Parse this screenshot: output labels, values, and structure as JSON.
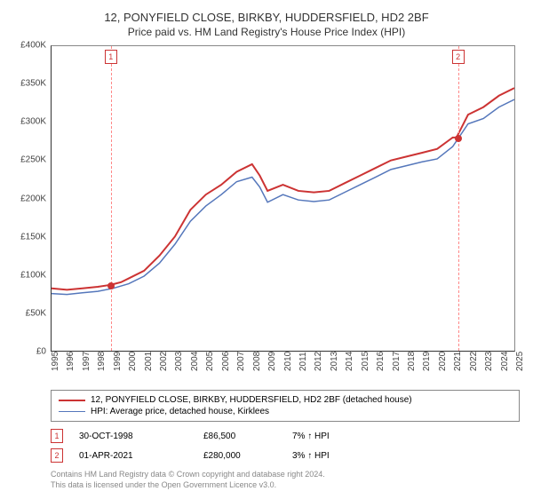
{
  "header": {
    "title": "12, PONYFIELD CLOSE, BIRKBY, HUDDERSFIELD, HD2 2BF",
    "subtitle": "Price paid vs. HM Land Registry's House Price Index (HPI)"
  },
  "chart": {
    "type": "line",
    "ylim": [
      0,
      400000
    ],
    "yticks": [
      0,
      50000,
      100000,
      150000,
      200000,
      250000,
      300000,
      350000,
      400000
    ],
    "ytick_labels": [
      "£0",
      "£50K",
      "£100K",
      "£150K",
      "£200K",
      "£250K",
      "£300K",
      "£350K",
      "£400K"
    ],
    "xlim": [
      1995,
      2025
    ],
    "xticks": [
      1995,
      1996,
      1997,
      1998,
      1999,
      2000,
      2001,
      2002,
      2003,
      2004,
      2005,
      2006,
      2007,
      2008,
      2009,
      2010,
      2011,
      2012,
      2013,
      2014,
      2015,
      2016,
      2017,
      2018,
      2019,
      2020,
      2021,
      2022,
      2023,
      2024,
      2025
    ],
    "background_color": "#ffffff",
    "axis_color": "#333333",
    "marker_line_color": "#ff8888",
    "marker_box_border": "#cc3333",
    "series": [
      {
        "name": "price_paid",
        "label": "12, PONYFIELD CLOSE, BIRKBY, HUDDERSFIELD, HD2 2BF (detached house)",
        "color": "#cc3333",
        "width": 2,
        "points": [
          [
            1995,
            82000
          ],
          [
            1996,
            80000
          ],
          [
            1997,
            82000
          ],
          [
            1998,
            84000
          ],
          [
            1998.83,
            86500
          ],
          [
            1999.5,
            90000
          ],
          [
            2000,
            95000
          ],
          [
            2001,
            105000
          ],
          [
            2002,
            125000
          ],
          [
            2003,
            150000
          ],
          [
            2004,
            185000
          ],
          [
            2005,
            205000
          ],
          [
            2006,
            218000
          ],
          [
            2007,
            235000
          ],
          [
            2008,
            245000
          ],
          [
            2008.5,
            230000
          ],
          [
            2009,
            210000
          ],
          [
            2010,
            218000
          ],
          [
            2011,
            210000
          ],
          [
            2012,
            208000
          ],
          [
            2013,
            210000
          ],
          [
            2014,
            220000
          ],
          [
            2015,
            230000
          ],
          [
            2016,
            240000
          ],
          [
            2017,
            250000
          ],
          [
            2018,
            255000
          ],
          [
            2019,
            260000
          ],
          [
            2020,
            265000
          ],
          [
            2021,
            280000
          ],
          [
            2021.25,
            280000
          ],
          [
            2022,
            310000
          ],
          [
            2023,
            320000
          ],
          [
            2024,
            335000
          ],
          [
            2025,
            345000
          ]
        ]
      },
      {
        "name": "hpi",
        "label": "HPI: Average price, detached house, Kirklees",
        "color": "#5577bb",
        "width": 1.5,
        "points": [
          [
            1995,
            75000
          ],
          [
            1996,
            74000
          ],
          [
            1997,
            76000
          ],
          [
            1998,
            78000
          ],
          [
            1999,
            82000
          ],
          [
            2000,
            88000
          ],
          [
            2001,
            98000
          ],
          [
            2002,
            115000
          ],
          [
            2003,
            140000
          ],
          [
            2004,
            170000
          ],
          [
            2005,
            190000
          ],
          [
            2006,
            205000
          ],
          [
            2007,
            222000
          ],
          [
            2008,
            228000
          ],
          [
            2008.5,
            215000
          ],
          [
            2009,
            195000
          ],
          [
            2010,
            205000
          ],
          [
            2011,
            198000
          ],
          [
            2012,
            196000
          ],
          [
            2013,
            198000
          ],
          [
            2014,
            208000
          ],
          [
            2015,
            218000
          ],
          [
            2016,
            228000
          ],
          [
            2017,
            238000
          ],
          [
            2018,
            243000
          ],
          [
            2019,
            248000
          ],
          [
            2020,
            252000
          ],
          [
            2021,
            268000
          ],
          [
            2022,
            298000
          ],
          [
            2023,
            305000
          ],
          [
            2024,
            320000
          ],
          [
            2025,
            330000
          ]
        ]
      }
    ],
    "markers": [
      {
        "num": "1",
        "x": 1998.83,
        "y": 86500
      },
      {
        "num": "2",
        "x": 2021.25,
        "y": 280000
      }
    ]
  },
  "legend": {
    "items": [
      {
        "color": "#cc3333",
        "width": 2,
        "label": "12, PONYFIELD CLOSE, BIRKBY, HUDDERSFIELD, HD2 2BF (detached house)"
      },
      {
        "color": "#5577bb",
        "width": 1.5,
        "label": "HPI: Average price, detached house, Kirklees"
      }
    ]
  },
  "transactions": [
    {
      "num": "1",
      "date": "30-OCT-1998",
      "price": "£86,500",
      "diff": "7% ↑ HPI"
    },
    {
      "num": "2",
      "date": "01-APR-2021",
      "price": "£280,000",
      "diff": "3% ↑ HPI"
    }
  ],
  "footer": {
    "line1": "Contains HM Land Registry data © Crown copyright and database right 2024.",
    "line2": "This data is licensed under the Open Government Licence v3.0."
  }
}
